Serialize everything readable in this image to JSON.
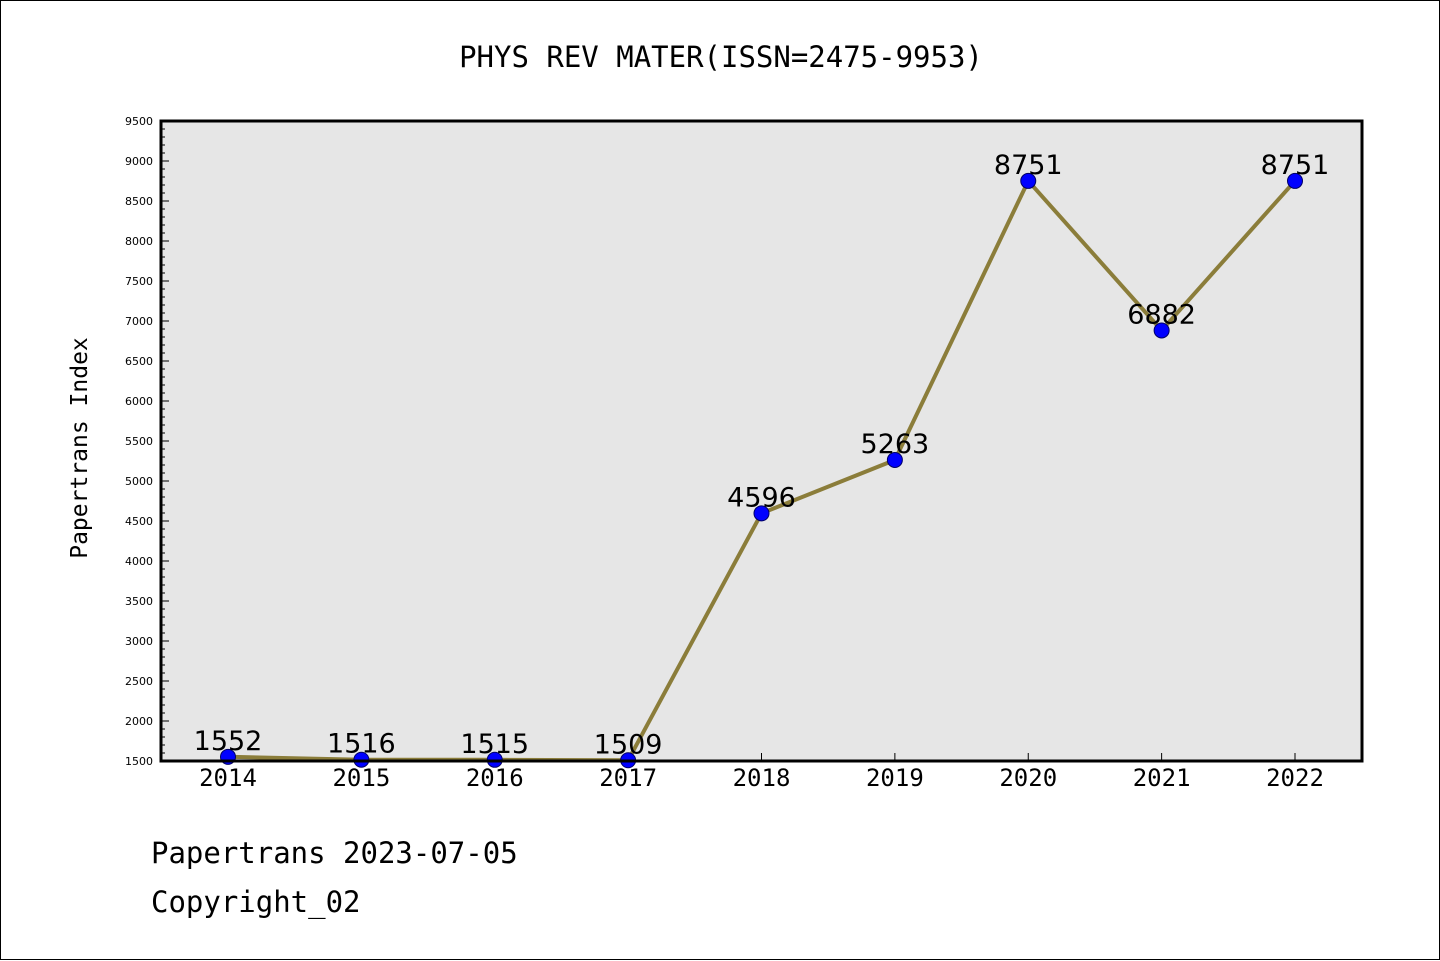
{
  "colors": {
    "plot_background": "#e6e6e6",
    "line": "#8b7d3a",
    "marker_fill": "#0000ff",
    "marker_edge": "#000066",
    "axis": "#000000"
  },
  "chart_data": {
    "type": "line",
    "title": "PHYS REV MATER(ISSN=2475-9953)",
    "xlabel": "",
    "ylabel": "Papertrans Index",
    "categories": [
      "2014",
      "2015",
      "2016",
      "2017",
      "2018",
      "2019",
      "2020",
      "2021",
      "2022"
    ],
    "series": [
      {
        "values": [
          1552,
          1516,
          1515,
          1509,
          4596,
          5263,
          8751,
          6882,
          8751
        ],
        "data_labels": [
          "1552",
          "1516",
          "1515",
          "1509",
          "4596",
          "5263",
          "8751",
          "6882",
          "8751"
        ]
      }
    ],
    "ylim": [
      1500,
      9500
    ],
    "yticks": [
      "1500",
      "2000",
      "2500",
      "3000",
      "3500",
      "4000",
      "4500",
      "5000",
      "5500",
      "6000",
      "6500",
      "7000",
      "7500",
      "8000",
      "8500",
      "9000",
      "9500"
    ],
    "grid": false,
    "legend": "none"
  },
  "footer": {
    "date_line": "Papertrans 2023-07-05",
    "copyright_line": "Copyright_02"
  }
}
